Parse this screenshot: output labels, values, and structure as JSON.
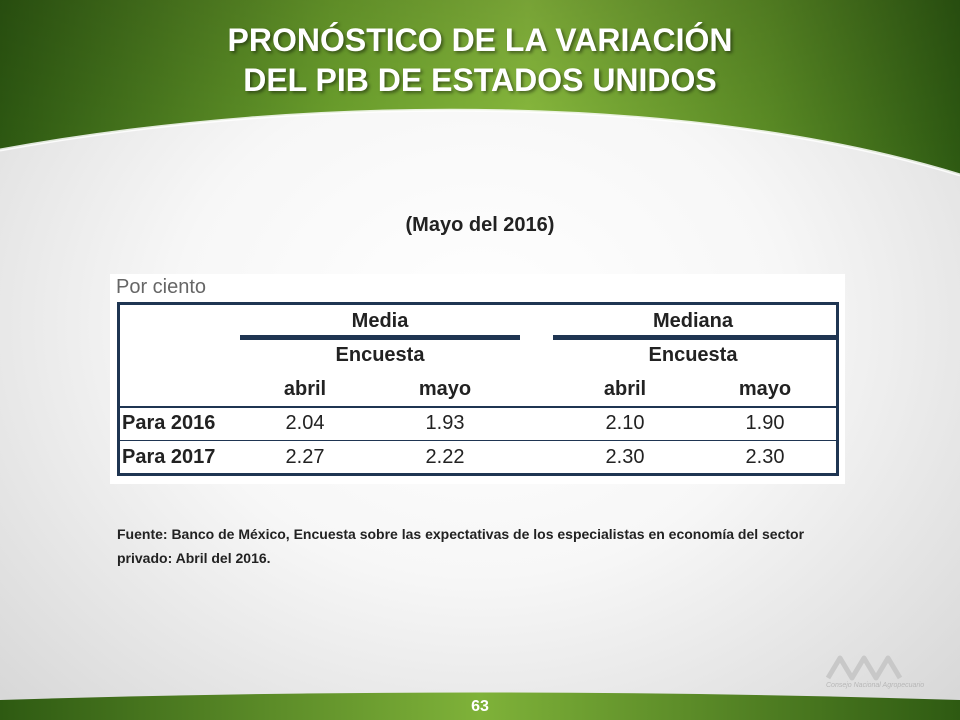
{
  "title": {
    "line1": "PRONÓSTICO DE LA VARIACIÓN",
    "line2": "DEL PIB DE ESTADOS UNIDOS"
  },
  "subtitle": "(Mayo del 2016)",
  "table": {
    "unit_label": "Por ciento",
    "groups": [
      {
        "label": "Media",
        "sub": "Encuesta",
        "cols": [
          "abril",
          "mayo"
        ]
      },
      {
        "label": "Mediana",
        "sub": "Encuesta",
        "cols": [
          "abril",
          "mayo"
        ]
      }
    ],
    "rows": [
      {
        "label": "Para 2016",
        "values": [
          "2.04",
          "1.93",
          "2.10",
          "1.90"
        ]
      },
      {
        "label": "Para 2017",
        "values": [
          "2.27",
          "2.22",
          "2.30",
          "2.30"
        ]
      }
    ]
  },
  "source": "Fuente: Banco de México, Encuesta sobre las expectativas de los especialistas en economía del sector privado: Abril del 2016.",
  "logo_text": "Consejo Nacional Agropecuario",
  "page_number": "63",
  "colors": {
    "header_green_dark": "#2e5a12",
    "header_green_light": "#8cbf3f",
    "table_border": "#1f3552"
  }
}
